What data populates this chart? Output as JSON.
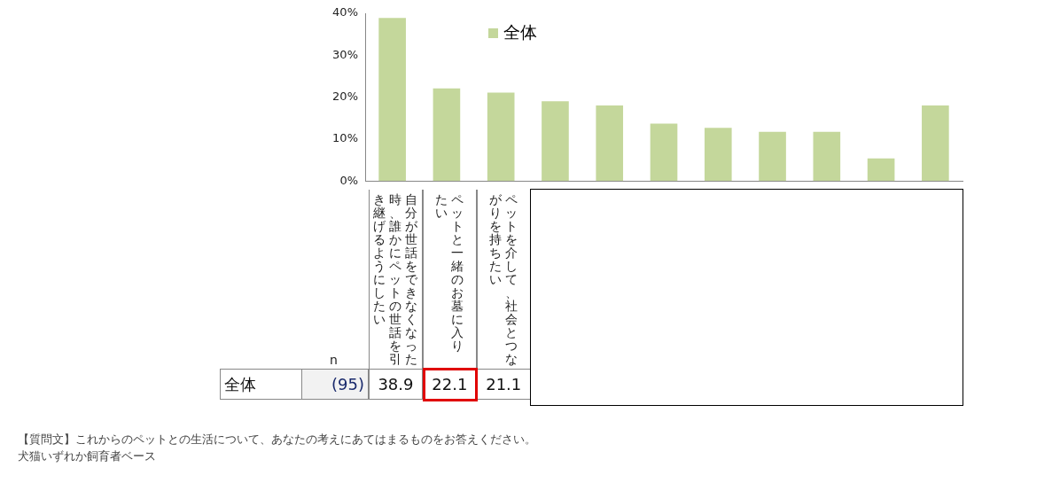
{
  "chart_data": {
    "type": "bar",
    "categories": [
      "自分が世話をできなくなった時、誰かにペットの世話を引き継げるようにしたい",
      "ペットと一緒のお墓に入りたい",
      "ペットを介して、社会とつながりを持ちたい",
      null,
      null,
      null,
      null,
      null,
      null,
      null,
      null
    ],
    "series": [
      {
        "name": "全体",
        "color": "#c4d79b",
        "values": [
          38.9,
          22.1,
          21.1,
          19.0,
          18.0,
          13.7,
          12.7,
          11.7,
          11.7,
          5.4,
          18.0
        ],
        "value_labels": [
          "38.9",
          "22.1",
          "21.1",
          null,
          null,
          null,
          null,
          null,
          null,
          null,
          null
        ]
      }
    ],
    "ylim": [
      0,
      40
    ],
    "yticks": [
      {
        "value": 0,
        "label": "0%"
      },
      {
        "value": 10,
        "label": "10%"
      },
      {
        "value": 20,
        "label": "20%"
      },
      {
        "value": 30,
        "label": "30%"
      },
      {
        "value": 40,
        "label": "40%"
      }
    ],
    "grid": false,
    "legend": "top",
    "annotations": [
      "n",
      "(95)",
      "【質問文】これからのペットとの生活について、あなたの考えにあてはまるものをお答えください。",
      "犬猫いずれか飼育者ベース"
    ]
  }
}
